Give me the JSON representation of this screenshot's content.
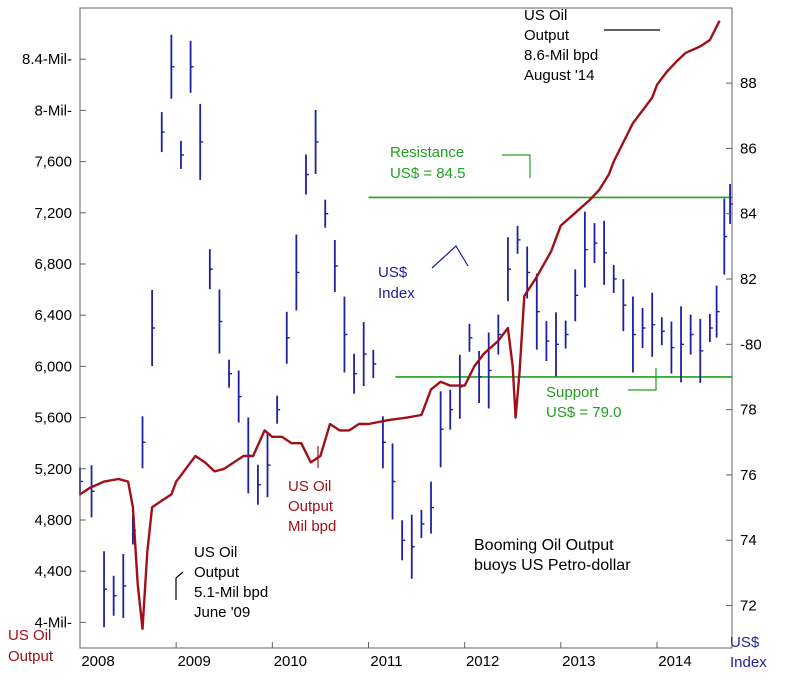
{
  "chart_data": {
    "type": "line",
    "title": "Booming Oil Output buoys US Petro-dollar",
    "title_lines": [
      "Booming Oil Output",
      "buoys US Petro-dollar"
    ],
    "x_ticks": [
      "2008",
      "2009",
      "2010",
      "2011",
      "2012",
      "2013",
      "2014"
    ],
    "xlim": [
      2008.0,
      2014.78
    ],
    "left_axis": {
      "label_lines": [
        "US Oil",
        "Output"
      ],
      "ylim": [
        3.8,
        8.8
      ],
      "ticks": [
        {
          "value": 4.0,
          "label": "4-Mil-"
        },
        {
          "value": 4.4,
          "label": "4,400"
        },
        {
          "value": 4.8,
          "label": "4,800"
        },
        {
          "value": 5.2,
          "label": "5,200"
        },
        {
          "value": 5.6,
          "label": "5,600"
        },
        {
          "value": 6.0,
          "label": "6,000"
        },
        {
          "value": 6.4,
          "label": "6,400"
        },
        {
          "value": 6.8,
          "label": "6,800"
        },
        {
          "value": 7.2,
          "label": "7,200"
        },
        {
          "value": 7.6,
          "label": "7,600"
        },
        {
          "value": 8.0,
          "label": "8-Mil-"
        },
        {
          "value": 8.4,
          "label": "8.4-Mil-"
        }
      ]
    },
    "right_axis": {
      "label_lines": [
        "US$",
        "Index"
      ],
      "ylim": [
        70.7,
        90.3
      ],
      "ticks": [
        {
          "value": 72,
          "label": "72"
        },
        {
          "value": 74,
          "label": "74"
        },
        {
          "value": 76,
          "label": "76"
        },
        {
          "value": 78,
          "label": "78"
        },
        {
          "value": 80,
          "label": "-80"
        },
        {
          "value": 82,
          "label": "82"
        },
        {
          "value": 84,
          "label": "84"
        },
        {
          "value": 86,
          "label": "86"
        },
        {
          "value": 88,
          "label": "88"
        }
      ]
    },
    "series": [
      {
        "name": "US Oil Output (Mil bpd)",
        "axis": "left",
        "color": "#a01018",
        "points": [
          [
            2008.0,
            5.0
          ],
          [
            2008.1,
            5.05
          ],
          [
            2008.25,
            5.1
          ],
          [
            2008.4,
            5.12
          ],
          [
            2008.5,
            5.1
          ],
          [
            2008.55,
            4.9
          ],
          [
            2008.6,
            4.3
          ],
          [
            2008.65,
            3.95
          ],
          [
            2008.7,
            4.55
          ],
          [
            2008.75,
            4.9
          ],
          [
            2008.85,
            4.95
          ],
          [
            2008.95,
            5.0
          ],
          [
            2009.0,
            5.1
          ],
          [
            2009.1,
            5.2
          ],
          [
            2009.2,
            5.3
          ],
          [
            2009.3,
            5.25
          ],
          [
            2009.4,
            5.18
          ],
          [
            2009.5,
            5.2
          ],
          [
            2009.6,
            5.25
          ],
          [
            2009.7,
            5.3
          ],
          [
            2009.8,
            5.3
          ],
          [
            2009.92,
            5.5
          ],
          [
            2010.0,
            5.45
          ],
          [
            2010.1,
            5.45
          ],
          [
            2010.2,
            5.4
          ],
          [
            2010.3,
            5.4
          ],
          [
            2010.4,
            5.25
          ],
          [
            2010.5,
            5.3
          ],
          [
            2010.6,
            5.55
          ],
          [
            2010.7,
            5.5
          ],
          [
            2010.8,
            5.5
          ],
          [
            2010.9,
            5.55
          ],
          [
            2011.0,
            5.55
          ],
          [
            2011.2,
            5.58
          ],
          [
            2011.4,
            5.6
          ],
          [
            2011.55,
            5.62
          ],
          [
            2011.65,
            5.82
          ],
          [
            2011.75,
            5.88
          ],
          [
            2011.85,
            5.85
          ],
          [
            2012.0,
            5.85
          ],
          [
            2012.1,
            6.0
          ],
          [
            2012.2,
            6.1
          ],
          [
            2012.35,
            6.2
          ],
          [
            2012.45,
            6.3
          ],
          [
            2012.5,
            6.0
          ],
          [
            2012.53,
            5.6
          ],
          [
            2012.57,
            5.95
          ],
          [
            2012.62,
            6.55
          ],
          [
            2012.75,
            6.7
          ],
          [
            2012.9,
            6.9
          ],
          [
            2013.0,
            7.1
          ],
          [
            2013.15,
            7.2
          ],
          [
            2013.3,
            7.3
          ],
          [
            2013.4,
            7.38
          ],
          [
            2013.5,
            7.5
          ],
          [
            2013.55,
            7.6
          ],
          [
            2013.65,
            7.75
          ],
          [
            2013.75,
            7.9
          ],
          [
            2013.85,
            8.0
          ],
          [
            2013.95,
            8.1
          ],
          [
            2014.0,
            8.2
          ],
          [
            2014.1,
            8.3
          ],
          [
            2014.2,
            8.38
          ],
          [
            2014.3,
            8.45
          ],
          [
            2014.45,
            8.5
          ],
          [
            2014.55,
            8.55
          ],
          [
            2014.65,
            8.7
          ]
        ]
      },
      {
        "name": "US$ Index",
        "axis": "right",
        "color": "#2020a0",
        "points": [
          [
            2008.0,
            75.8
          ],
          [
            2008.12,
            75.5
          ],
          [
            2008.25,
            72.5
          ],
          [
            2008.35,
            72.3
          ],
          [
            2008.45,
            72.6
          ],
          [
            2008.55,
            74.3
          ],
          [
            2008.65,
            77.0
          ],
          [
            2008.75,
            80.5
          ],
          [
            2008.85,
            86.5
          ],
          [
            2008.95,
            88.5
          ],
          [
            2009.05,
            85.8
          ],
          [
            2009.15,
            88.5
          ],
          [
            2009.25,
            86.2
          ],
          [
            2009.35,
            82.3
          ],
          [
            2009.45,
            80.7
          ],
          [
            2009.55,
            79.1
          ],
          [
            2009.65,
            78.4
          ],
          [
            2009.75,
            76.6
          ],
          [
            2009.85,
            75.7
          ],
          [
            2009.95,
            76.3
          ],
          [
            2010.05,
            78.0
          ],
          [
            2010.15,
            80.2
          ],
          [
            2010.25,
            82.2
          ],
          [
            2010.35,
            85.2
          ],
          [
            2010.45,
            86.2
          ],
          [
            2010.55,
            84.0
          ],
          [
            2010.65,
            82.4
          ],
          [
            2010.75,
            80.3
          ],
          [
            2010.85,
            79.1
          ],
          [
            2010.95,
            79.7
          ],
          [
            2011.05,
            79.4
          ],
          [
            2011.15,
            77.0
          ],
          [
            2011.25,
            75.8
          ],
          [
            2011.35,
            74.0
          ],
          [
            2011.45,
            73.8
          ],
          [
            2011.55,
            74.5
          ],
          [
            2011.65,
            75.0
          ],
          [
            2011.75,
            77.4
          ],
          [
            2011.85,
            78.0
          ],
          [
            2011.95,
            78.7
          ],
          [
            2012.05,
            80.2
          ],
          [
            2012.15,
            79.0
          ],
          [
            2012.25,
            79.2
          ],
          [
            2012.35,
            80.3
          ],
          [
            2012.45,
            82.3
          ],
          [
            2012.55,
            83.2
          ],
          [
            2012.65,
            82.2
          ],
          [
            2012.75,
            81.0
          ],
          [
            2012.85,
            80.1
          ],
          [
            2012.95,
            80.0
          ],
          [
            2013.05,
            80.3
          ],
          [
            2013.15,
            81.5
          ],
          [
            2013.25,
            82.9
          ],
          [
            2013.35,
            83.1
          ],
          [
            2013.45,
            82.8
          ],
          [
            2013.55,
            82.0
          ],
          [
            2013.65,
            81.2
          ],
          [
            2013.75,
            80.3
          ],
          [
            2013.85,
            80.5
          ],
          [
            2013.95,
            80.6
          ],
          [
            2014.05,
            80.4
          ],
          [
            2014.15,
            79.9
          ],
          [
            2014.25,
            80.0
          ],
          [
            2014.35,
            80.3
          ],
          [
            2014.45,
            79.8
          ],
          [
            2014.55,
            80.5
          ],
          [
            2014.62,
            81.0
          ],
          [
            2014.7,
            83.3
          ],
          [
            2014.76,
            84.3
          ]
        ]
      }
    ],
    "reference_lines": [
      {
        "name": "Resistance",
        "axis": "right",
        "value": 84.5,
        "x_from": 2011.0,
        "x_to": 2014.78,
        "color": "#20a020"
      },
      {
        "name": "Support",
        "axis": "right",
        "value": 79.0,
        "x_from": 2011.28,
        "x_to": 2014.78,
        "color": "#20a020"
      }
    ],
    "annotations": [
      {
        "name": "oil-peak",
        "lines": [
          "US Oil",
          "Output",
          "8.6-Mil bpd",
          "August '14"
        ],
        "color": "#000000"
      },
      {
        "name": "oil-low",
        "lines": [
          "US Oil",
          "Output",
          "5.1-Mil bpd",
          "June '09"
        ],
        "color": "#000000"
      },
      {
        "name": "resistance",
        "lines": [
          "Resistance",
          "US$ = 84.5"
        ],
        "color": "#20a020"
      },
      {
        "name": "support",
        "lines": [
          "Support",
          "US$ = 79.0"
        ],
        "color": "#20a020"
      },
      {
        "name": "usd-index",
        "lines": [
          "US$",
          "Index"
        ],
        "color": "#2020a0"
      },
      {
        "name": "oil-series",
        "lines": [
          "US Oil",
          "Output",
          "Mil bpd"
        ],
        "color": "#a01018"
      }
    ]
  }
}
